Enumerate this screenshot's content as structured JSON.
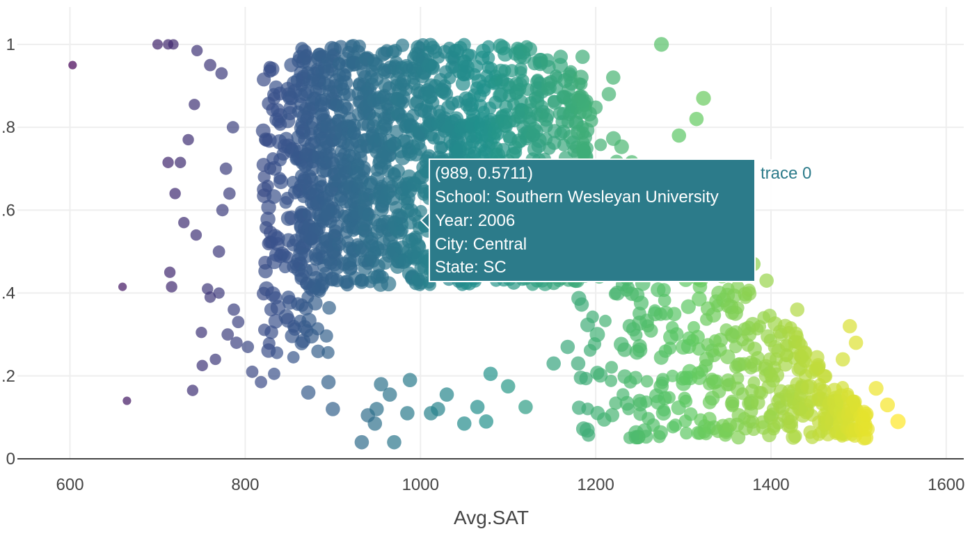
{
  "chart_data": {
    "type": "scatter",
    "title": "",
    "xlabel": "Avg.SAT",
    "ylabel": "",
    "xlim": [
      540,
      1620
    ],
    "ylim": [
      0,
      1.04
    ],
    "x_ticks": [
      "600",
      "800",
      "1000",
      "1200",
      "1400",
      "1600"
    ],
    "y_ticks": [
      "0",
      ".2",
      ".4",
      ".6",
      ".8",
      "1"
    ],
    "grid": true,
    "colorscale": "viridis",
    "color_range": [
      600,
      1545
    ],
    "marker_opacity": 0.7,
    "series": [
      {
        "name": "trace 0",
        "points": [
          [
            603,
            0.95,
            0.3
          ],
          [
            665,
            0.14,
            0.3
          ],
          [
            660,
            0.415,
            0.3
          ],
          [
            700,
            1.0,
            0.5
          ],
          [
            712,
            1.0,
            0.5
          ],
          [
            718,
            1.0,
            0.5
          ],
          [
            745,
            0.985,
            0.6
          ],
          [
            742,
            0.855,
            0.6
          ],
          [
            740,
            0.165,
            0.6
          ],
          [
            735,
            0.77,
            0.6
          ],
          [
            712,
            0.715,
            0.6
          ],
          [
            726,
            0.715,
            0.6
          ],
          [
            720,
            0.64,
            0.6
          ],
          [
            716,
            0.415,
            0.6
          ],
          [
            714,
            0.45,
            0.6
          ],
          [
            730,
            0.57,
            0.6
          ],
          [
            744,
            0.54,
            0.6
          ],
          [
            750,
            0.305,
            0.6
          ],
          [
            751,
            0.225,
            0.6
          ],
          [
            757,
            0.41,
            0.6
          ],
          [
            760,
            0.39,
            0.6
          ],
          [
            766,
            0.24,
            0.6
          ],
          [
            770,
            0.4,
            0.6
          ],
          [
            760,
            0.95,
            0.7
          ],
          [
            773,
            0.93,
            0.7
          ],
          [
            786,
            0.8,
            0.7
          ],
          [
            778,
            0.7,
            0.7
          ],
          [
            782,
            0.64,
            0.7
          ],
          [
            774,
            0.6,
            0.7
          ],
          [
            770,
            0.5,
            0.7
          ],
          [
            787,
            0.36,
            0.7
          ],
          [
            792,
            0.33,
            0.7
          ],
          [
            780,
            0.3,
            0.7
          ],
          [
            790,
            0.28,
            0.7
          ],
          [
            803,
            0.27,
            0.7
          ],
          [
            808,
            0.21,
            0.7
          ],
          [
            818,
            0.185,
            0.7
          ],
          [
            833,
            0.205,
            0.7
          ],
          [
            855,
            0.245,
            0.7
          ],
          [
            1275,
            1.0,
            0.95
          ],
          [
            1323,
            0.87,
            0.95
          ],
          [
            1315,
            0.82,
            0.9
          ],
          [
            1360,
            0.65,
            0.9
          ],
          [
            1340,
            0.55,
            0.9
          ],
          [
            1380,
            0.47,
            0.9
          ],
          [
            1395,
            0.43,
            0.9
          ],
          [
            1430,
            0.36,
            0.9
          ],
          [
            1490,
            0.32,
            0.9
          ],
          [
            1497,
            0.28,
            0.9
          ],
          [
            1482,
            0.24,
            0.9
          ],
          [
            1545,
            0.09,
            1.0
          ],
          [
            1520,
            0.17,
            0.95
          ],
          [
            1533,
            0.13,
            0.95
          ],
          [
            1500,
            0.07,
            0.95
          ],
          [
            1485,
            0.06,
            0.95
          ],
          [
            1465,
            0.06,
            0.95
          ],
          [
            1420,
            0.08,
            0.95
          ],
          [
            1400,
            0.1,
            0.95
          ],
          [
            1350,
            0.07,
            0.95
          ],
          [
            1335,
            0.075,
            0.95
          ],
          [
            1180,
            0.23,
            0.9
          ],
          [
            1152,
            0.23,
            0.9
          ],
          [
            1168,
            0.27,
            0.9
          ],
          [
            1120,
            0.125,
            0.9
          ],
          [
            1100,
            0.175,
            0.9
          ],
          [
            1080,
            0.205,
            0.9
          ],
          [
            1075,
            0.09,
            0.9
          ],
          [
            1065,
            0.125,
            0.9
          ],
          [
            1050,
            0.085,
            0.9
          ],
          [
            1020,
            0.12,
            0.9
          ],
          [
            1012,
            0.11,
            0.9
          ],
          [
            985,
            0.11,
            0.9
          ],
          [
            970,
            0.04,
            0.9
          ],
          [
            933,
            0.04,
            0.9
          ],
          [
            948,
            0.085,
            0.9
          ],
          [
            940,
            0.105,
            0.9
          ],
          [
            950,
            0.12,
            0.9
          ],
          [
            955,
            0.18,
            0.9
          ],
          [
            965,
            0.155,
            0.9
          ],
          [
            988,
            0.19,
            0.9
          ],
          [
            900,
            0.12,
            0.9
          ],
          [
            895,
            0.185,
            0.9
          ],
          [
            872,
            0.16,
            0.9
          ],
          [
            1030,
            0.155,
            0.9
          ],
          [
            1160,
            0.97,
            0.9
          ],
          [
            1185,
            0.97,
            0.9
          ],
          [
            1220,
            0.92,
            0.9
          ],
          [
            1215,
            0.88,
            0.9
          ],
          [
            1295,
            0.78,
            0.9
          ],
          [
            1270,
            0.7,
            0.9
          ]
        ]
      }
    ]
  },
  "tooltip": {
    "coords": "(989, 0.5711)",
    "school": "School:  Southern Wesleyan University",
    "year": "Year: 2006",
    "city": "City: Central",
    "state": "State: SC",
    "trace_label": "trace 0",
    "bg_color": "#2c7b8a",
    "text_color": "#ffffff"
  }
}
